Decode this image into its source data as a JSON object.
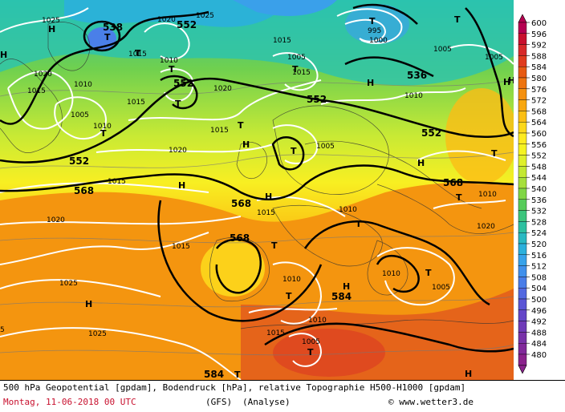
{
  "caption": {
    "line1": "500 hPa Geopotential [gpdam], Bodendruck [hPa], relative Topographie H500-H1000 [gpdam]",
    "date": "Montag, 11-06-2018  00 UTC",
    "model": "(GFS)",
    "analysis": "(Analyse)",
    "site": "© www.wetter3.de"
  },
  "legend": {
    "values": [
      "600",
      "596",
      "592",
      "588",
      "584",
      "580",
      "576",
      "572",
      "568",
      "564",
      "560",
      "556",
      "552",
      "548",
      "544",
      "540",
      "536",
      "532",
      "528",
      "524",
      "520",
      "516",
      "512",
      "508",
      "504",
      "500",
      "496",
      "492",
      "488",
      "484",
      "480"
    ],
    "colors": [
      "#b40050",
      "#c8102e",
      "#d72a2a",
      "#e03c1e",
      "#e75a12",
      "#ee7410",
      "#f4900f",
      "#f8a70f",
      "#fbbf13",
      "#fcd81a",
      "#fdeb20",
      "#f5f321",
      "#dff02a",
      "#c3e832",
      "#a6df3b",
      "#80d645",
      "#57cc5b",
      "#3cc57d",
      "#2dc0a0",
      "#29b9c2",
      "#2bb0dc",
      "#37a2ea",
      "#4090ec",
      "#497de8",
      "#5268e0",
      "#5a55d5",
      "#6446c8",
      "#6f3bb8",
      "#7832a8",
      "#81299a",
      "#8a228c"
    ]
  },
  "map": {
    "geopotential_labels": [
      "538",
      "552",
      "552",
      "552",
      "536",
      "552",
      "552",
      "568",
      "568",
      "568",
      "568",
      "584",
      "584"
    ],
    "pressure_labels": [
      "1025",
      "1020",
      "1025",
      "1015",
      "1020",
      "1015",
      "1010",
      "1015",
      "1010",
      "1005",
      "1015",
      "1015",
      "1020",
      "1010",
      "1015",
      "1020",
      "1015",
      "1005",
      "1015",
      "1010",
      "1005",
      "995",
      "1000",
      "1005",
      "1005",
      "1020",
      "1015",
      "1010",
      "1010",
      "1020",
      "1025",
      "1025",
      "1010",
      "1010",
      "1015",
      "1005",
      "1010",
      "1005",
      "5"
    ],
    "pressure_systems": [
      "H",
      "H",
      "T",
      "T",
      "T",
      "T",
      "T",
      "T",
      "T",
      "T",
      "T",
      "H",
      "H",
      "T",
      "H",
      "H",
      "H",
      "T",
      "H",
      "T",
      "T",
      "T",
      "T",
      "H",
      "T",
      "H",
      "T",
      "H",
      "H",
      "T"
    ]
  }
}
